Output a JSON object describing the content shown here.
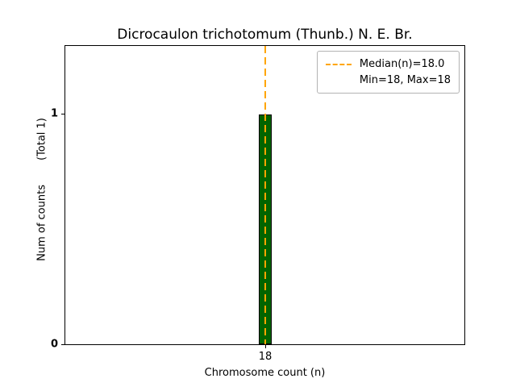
{
  "chart_data": {
    "type": "bar",
    "title": "Dicrocaulon trichotomum (Thunb.) N. E. Br.",
    "xlabel": "Chromosome count (n)",
    "ylabel": "Num of counts",
    "total_label": "(Total 1)",
    "categories": [
      18
    ],
    "values": [
      1
    ],
    "xtick_labels": [
      "18"
    ],
    "ytick_labels": [
      "0",
      "1"
    ],
    "ylim": [
      0,
      1.3
    ],
    "median": 18.0,
    "min": 18,
    "max": 18,
    "legend": [
      "Median(n)=18.0",
      "Min=18, Max=18"
    ],
    "legend_position": "upper right",
    "grid": false,
    "bar_color": "#006400",
    "bar_edge_color": "#000000",
    "median_line_color": "#FFA500"
  }
}
